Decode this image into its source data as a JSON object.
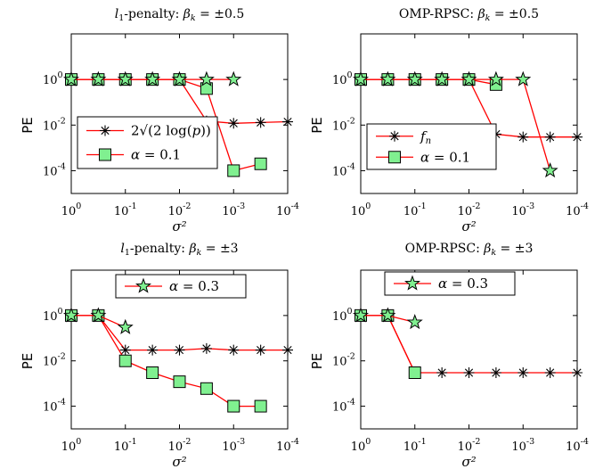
{
  "chart_data": [
    {
      "type": "line",
      "title": "l₁-penalty: βk = ±0.5",
      "xlabel": "σ²",
      "ylabel": "PE",
      "x_scale": "log-reversed",
      "y_scale": "log",
      "xlim": [
        1,
        0.0001
      ],
      "ylim": [
        1e-05,
        100
      ],
      "x_ticks": [
        "10^0",
        "10^-1",
        "10^-2",
        "10^-3",
        "10^-4"
      ],
      "y_ticks": [
        "10^0",
        "10^-2",
        "10^-4"
      ],
      "x": [
        1,
        0.316,
        0.1,
        0.0316,
        0.01,
        0.00316,
        0.001,
        0.000316,
        0.0001
      ],
      "legend_position": "bottom-left",
      "series": [
        {
          "name": "2√(2 log(p))",
          "marker": "asterisk",
          "color": "#ff0000",
          "values": [
            1,
            1,
            1,
            1,
            1,
            0.015,
            0.012,
            0.013,
            0.014
          ]
        },
        {
          "name": "α = 0.1",
          "marker": "square",
          "color": "#ff0000",
          "values": [
            1,
            1,
            1,
            1,
            1,
            0.4,
            0.0001,
            0.0002,
            null
          ]
        },
        {
          "name": "",
          "marker": "star",
          "color": "#ff0000",
          "values": [
            1,
            1,
            1,
            1,
            1,
            1,
            1,
            null,
            null
          ]
        }
      ]
    },
    {
      "type": "line",
      "title": "OMP-RPSC: βk = ±0.5",
      "xlabel": "σ²",
      "ylabel": "PE",
      "x_scale": "log-reversed",
      "y_scale": "log",
      "xlim": [
        1,
        0.0001
      ],
      "ylim": [
        1e-05,
        100
      ],
      "x_ticks": [
        "10^0",
        "10^-1",
        "10^-2",
        "10^-3",
        "10^-4"
      ],
      "y_ticks": [
        "10^0",
        "10^-2",
        "10^-4"
      ],
      "x": [
        1,
        0.316,
        0.1,
        0.0316,
        0.01,
        0.00316,
        0.001,
        0.000316,
        0.0001
      ],
      "legend_position": "bottom-left",
      "series": [
        {
          "name": "f_n",
          "marker": "asterisk",
          "color": "#ff0000",
          "values": [
            1,
            1,
            1,
            1,
            1,
            0.004,
            0.003,
            0.003,
            0.003
          ]
        },
        {
          "name": "α = 0.1",
          "marker": "square",
          "color": "#ff0000",
          "values": [
            1,
            1,
            1,
            1,
            1,
            0.6,
            null,
            null,
            null
          ]
        },
        {
          "name": "",
          "marker": "star",
          "color": "#ff0000",
          "values": [
            1,
            1,
            1,
            1,
            1,
            1,
            1,
            0.0001,
            null
          ]
        }
      ]
    },
    {
      "type": "line",
      "title": "l₁-penalty: βk = ±3",
      "xlabel": "σ²",
      "ylabel": "PE",
      "x_scale": "log-reversed",
      "y_scale": "log",
      "xlim": [
        1,
        0.0001
      ],
      "ylim": [
        1e-05,
        100
      ],
      "x_ticks": [
        "10^0",
        "10^-1",
        "10^-2",
        "10^-3",
        "10^-4"
      ],
      "y_ticks": [
        "10^0",
        "10^-2",
        "10^-4"
      ],
      "x": [
        1,
        0.316,
        0.1,
        0.0316,
        0.01,
        0.00316,
        0.001,
        0.000316,
        0.0001
      ],
      "legend_position": "top-right",
      "series": [
        {
          "name": "",
          "marker": "asterisk",
          "color": "#ff0000",
          "values": [
            1,
            1,
            0.03,
            0.03,
            0.03,
            0.035,
            0.03,
            0.03,
            0.03
          ]
        },
        {
          "name": "",
          "marker": "square",
          "color": "#ff0000",
          "values": [
            1,
            1,
            0.01,
            0.003,
            0.0012,
            0.0006,
            0.0001,
            0.0001,
            null
          ]
        },
        {
          "name": "α = 0.3",
          "marker": "star",
          "color": "#ff0000",
          "values": [
            1,
            1,
            0.3,
            null,
            null,
            null,
            null,
            null,
            null
          ]
        }
      ]
    },
    {
      "type": "line",
      "title": "OMP-RPSC: βk = ±3",
      "xlabel": "σ²",
      "ylabel": "PE",
      "x_scale": "log-reversed",
      "y_scale": "log",
      "xlim": [
        1,
        0.0001
      ],
      "ylim": [
        1e-05,
        100
      ],
      "x_ticks": [
        "10^0",
        "10^-1",
        "10^-2",
        "10^-3",
        "10^-4"
      ],
      "y_ticks": [
        "10^0",
        "10^-2",
        "10^-4"
      ],
      "x": [
        1,
        0.316,
        0.1,
        0.0316,
        0.01,
        0.00316,
        0.001,
        0.000316,
        0.0001
      ],
      "legend_position": "top-right",
      "series": [
        {
          "name": "",
          "marker": "asterisk",
          "color": "#ff0000",
          "values": [
            1,
            1,
            0.003,
            0.003,
            0.003,
            0.003,
            0.003,
            0.003,
            0.003
          ]
        },
        {
          "name": "",
          "marker": "square",
          "color": "#ff0000",
          "values": [
            1,
            1,
            0.003,
            null,
            null,
            null,
            null,
            null,
            null
          ]
        },
        {
          "name": "α = 0.3",
          "marker": "star",
          "color": "#ff0000",
          "values": [
            1,
            1,
            0.5,
            null,
            null,
            null,
            null,
            null,
            null
          ]
        }
      ]
    }
  ]
}
